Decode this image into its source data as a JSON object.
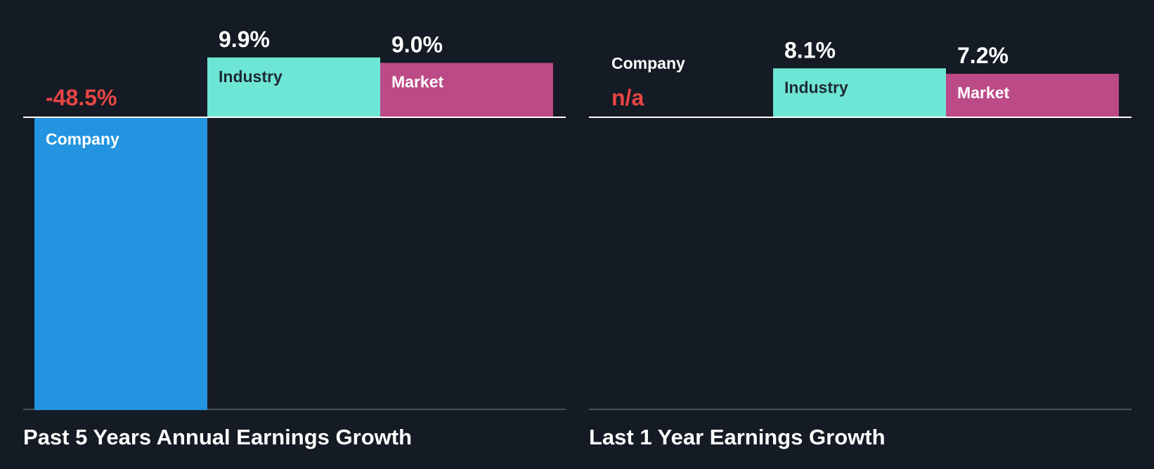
{
  "colors": {
    "background": "#151b24",
    "company": "#2394e0",
    "industry": "#6ee6d5",
    "market": "#bc4a87",
    "negative_text": "#e84545",
    "value_text": "#ffffff",
    "baseline": "#ffffff",
    "bottom_axis": "#4a505a"
  },
  "chart_data": [
    {
      "type": "bar",
      "title": "Past 5 Years Annual Earnings Growth",
      "categories": [
        "Company",
        "Industry",
        "Market"
      ],
      "values": [
        -48.5,
        9.9,
        9.0
      ],
      "labels": [
        "-48.5%",
        "9.9%",
        "9.0%"
      ],
      "units": "%",
      "ylim": [
        -48.5,
        9.9
      ]
    },
    {
      "type": "bar",
      "title": "Last 1 Year Earnings Growth",
      "categories": [
        "Company",
        "Industry",
        "Market"
      ],
      "values": [
        null,
        8.1,
        7.2
      ],
      "labels": [
        "n/a",
        "8.1%",
        "7.2%"
      ],
      "units": "%",
      "ylim": [
        -48.5,
        9.9
      ]
    }
  ]
}
